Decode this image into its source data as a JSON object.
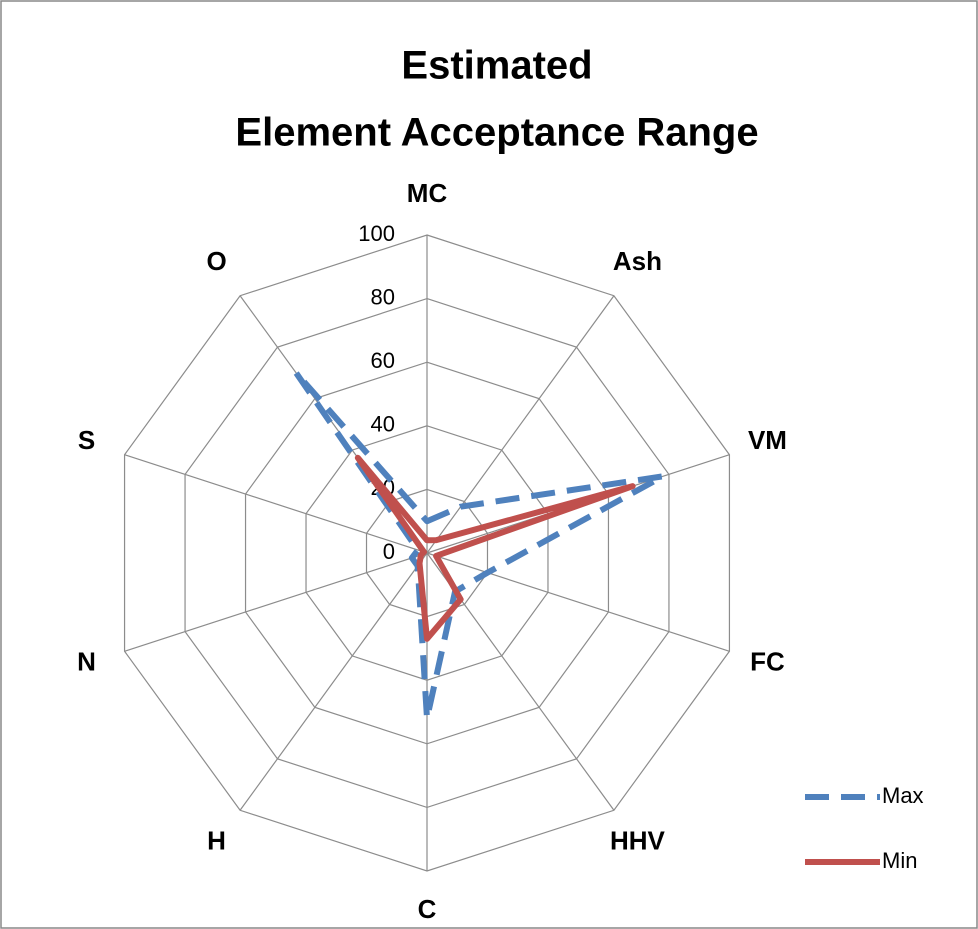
{
  "chart_data": {
    "type": "radar",
    "title": [
      "Estimated",
      "Element Acceptance Range"
    ],
    "categories": [
      "MC",
      "Ash",
      "VM",
      "FC",
      "HHV",
      "C",
      "H",
      "N",
      "S",
      "O"
    ],
    "series": [
      {
        "name": "Max",
        "color": "#4f81bd",
        "dash": true,
        "values": [
          10,
          18,
          78,
          20,
          15,
          52,
          5,
          5,
          3,
          70
        ]
      },
      {
        "name": "Min",
        "color": "#c0504d",
        "dash": false,
        "values": [
          4,
          5,
          68,
          3,
          18,
          27,
          4,
          2,
          1,
          37
        ]
      }
    ],
    "ylim": [
      0,
      100
    ],
    "yticks": [
      0,
      20,
      40,
      60,
      80,
      100
    ],
    "grid": true,
    "legend": "right"
  }
}
